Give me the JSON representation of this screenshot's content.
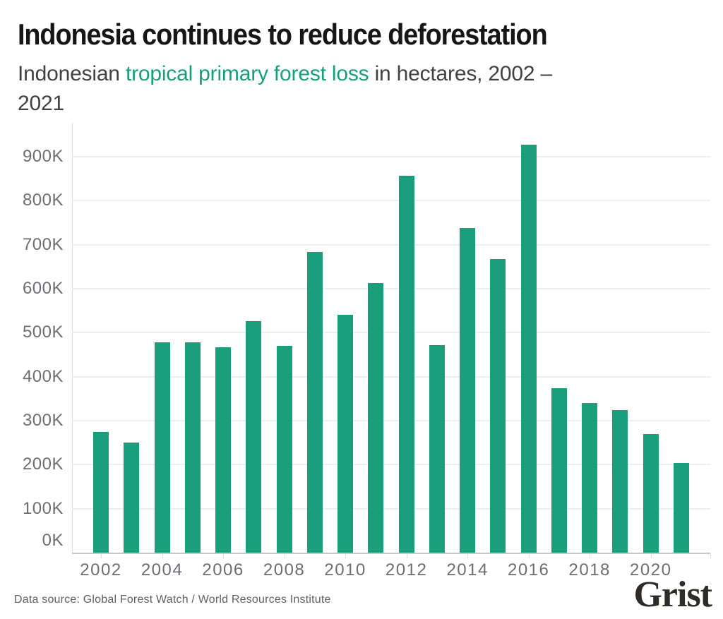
{
  "header": {
    "title": "Indonesia continues to reduce deforestation",
    "subtitle": {
      "prefix": "Indonesian ",
      "highlight": "tropical primary forest loss",
      "suffix_line1": " in hectares, 2002 –",
      "line2": "2021"
    }
  },
  "footer": {
    "source": "Data source: Global Forest Watch / World Resources Institute",
    "brand": "Grist"
  },
  "colors": {
    "background": "#FFFFFF",
    "title": "#161616",
    "subtitle_text": "#3F4245",
    "accent_green": "#14A07B",
    "bar": "#1A9E7C",
    "gridline": "#EFEFEF",
    "x_axis_line": "#C7C7C7",
    "y_axis_line": "#DBDBDB",
    "tick": "#DCDCDC",
    "axis_label": "#6B6F74",
    "source_text": "#5E6063",
    "brand_text": "#2F2B27"
  },
  "chart_data": {
    "type": "bar",
    "title": "Indonesia continues to reduce deforestation",
    "subtitle": "Indonesian tropical primary forest loss in hectares, 2002 – 2021",
    "unit": "hectares",
    "categories": [
      2002,
      2003,
      2004,
      2005,
      2006,
      2007,
      2008,
      2009,
      2010,
      2011,
      2012,
      2013,
      2014,
      2015,
      2016,
      2017,
      2018,
      2019,
      2020,
      2021
    ],
    "values": [
      274000,
      250000,
      478000,
      478000,
      467000,
      526000,
      470000,
      684000,
      540000,
      613000,
      856000,
      472000,
      738000,
      667000,
      928000,
      374000,
      340000,
      324000,
      270000,
      203000
    ],
    "y_tick_labels": [
      "0K",
      "100K",
      "200K",
      "300K",
      "400K",
      "500K",
      "600K",
      "700K",
      "800K",
      "900K"
    ],
    "x_tick_labels": [
      "2002",
      "2004",
      "2006",
      "2008",
      "2010",
      "2012",
      "2014",
      "2016",
      "2018",
      "2020"
    ],
    "ylim": [
      0,
      977000
    ],
    "grid": "horizontal",
    "legend": "none",
    "xlabel": "",
    "ylabel": ""
  }
}
